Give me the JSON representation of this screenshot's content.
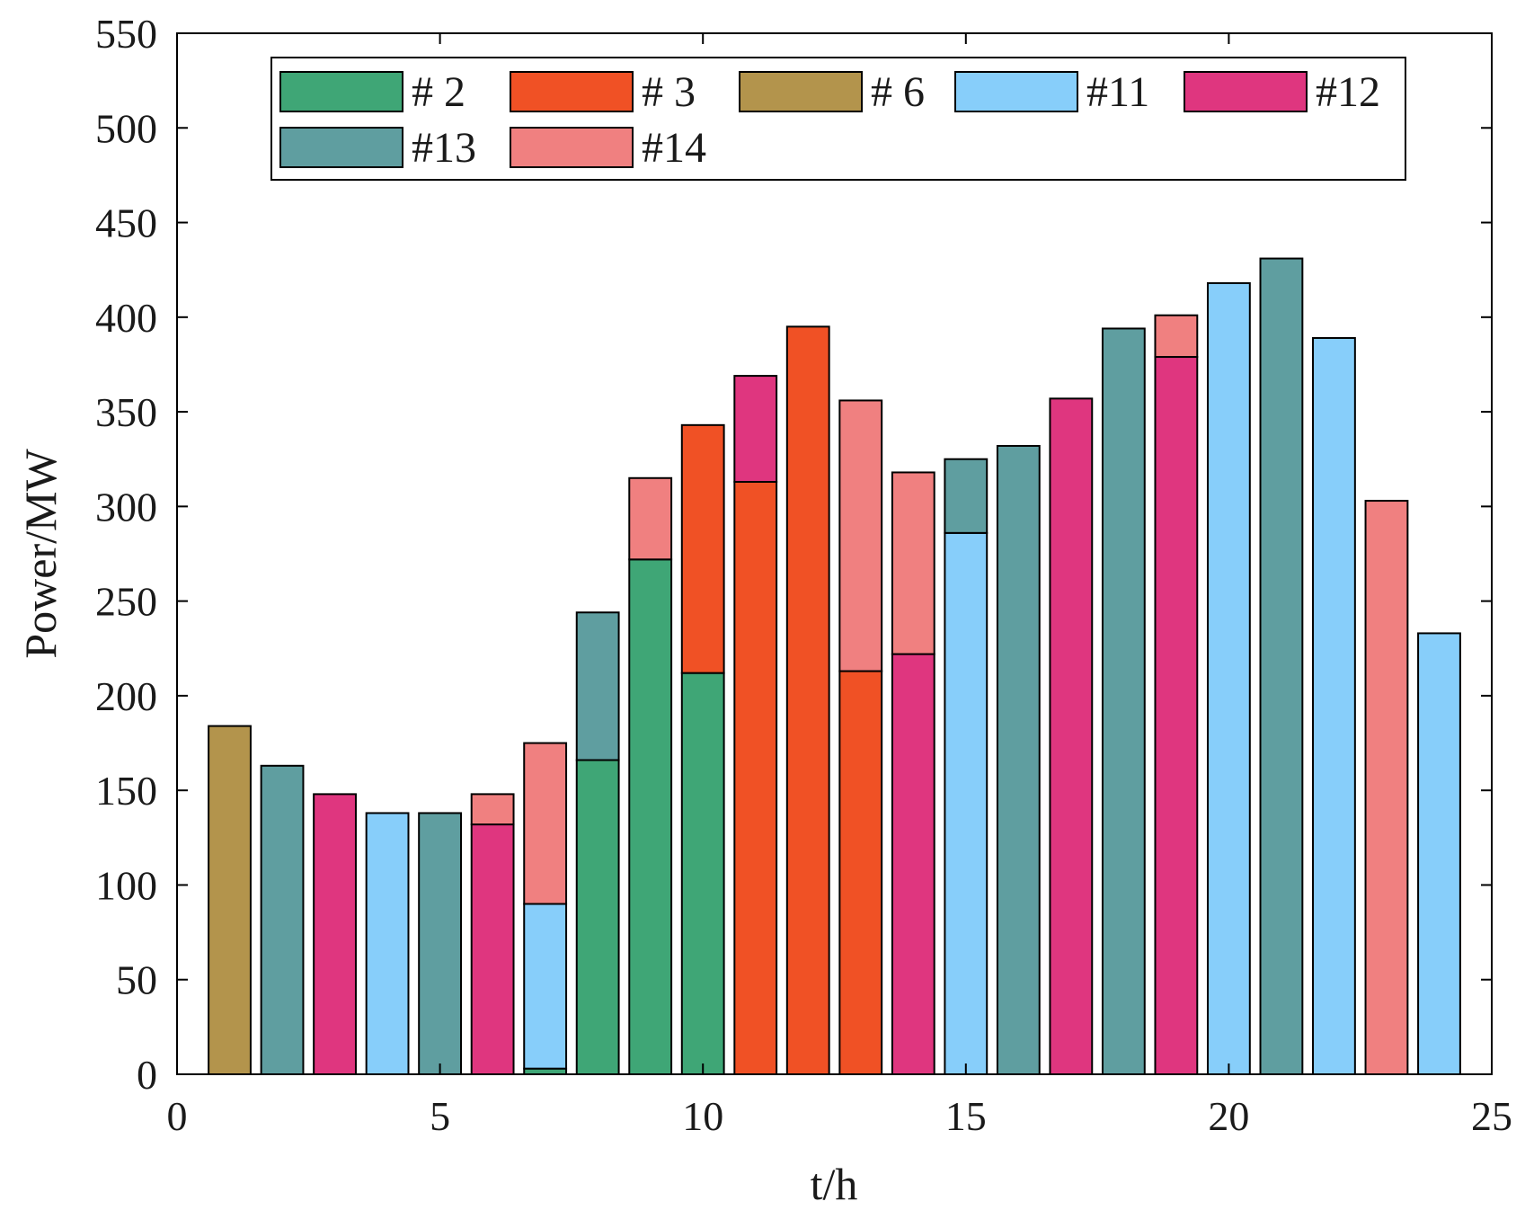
{
  "chart_data": {
    "type": "bar",
    "stacked": true,
    "xlabel": "t/h",
    "ylabel": "Power/MW",
    "xlim": [
      0,
      25
    ],
    "ylim": [
      0,
      550
    ],
    "xticks": [
      0,
      5,
      10,
      15,
      20,
      25
    ],
    "yticks": [
      0,
      50,
      100,
      150,
      200,
      250,
      300,
      350,
      400,
      450,
      500,
      550
    ],
    "legend_position": "top",
    "bar_width": 0.8,
    "series": [
      {
        "id": "s2",
        "name": "# 2",
        "color": "#3fa676"
      },
      {
        "id": "s3",
        "name": "# 3",
        "color": "#f05125"
      },
      {
        "id": "s6",
        "name": "# 6",
        "color": "#b3944c"
      },
      {
        "id": "s11",
        "name": "#11",
        "color": "#87cefa"
      },
      {
        "id": "s12",
        "name": "#12",
        "color": "#df367f"
      },
      {
        "id": "s13",
        "name": "#13",
        "color": "#5f9ea0"
      },
      {
        "id": "s14",
        "name": "#14",
        "color": "#f08080"
      }
    ],
    "hours": [
      {
        "t": 1,
        "segments": [
          {
            "series": "s6",
            "value": 184
          }
        ]
      },
      {
        "t": 2,
        "segments": [
          {
            "series": "s13",
            "value": 163
          }
        ]
      },
      {
        "t": 3,
        "segments": [
          {
            "series": "s12",
            "value": 148
          }
        ]
      },
      {
        "t": 4,
        "segments": [
          {
            "series": "s11",
            "value": 138
          }
        ]
      },
      {
        "t": 5,
        "segments": [
          {
            "series": "s13",
            "value": 138
          }
        ]
      },
      {
        "t": 6,
        "segments": [
          {
            "series": "s12",
            "value": 132
          },
          {
            "series": "s14",
            "value": 16
          }
        ]
      },
      {
        "t": 7,
        "segments": [
          {
            "series": "s2",
            "value": 3
          },
          {
            "series": "s11",
            "value": 87
          },
          {
            "series": "s14",
            "value": 85
          }
        ]
      },
      {
        "t": 8,
        "segments": [
          {
            "series": "s2",
            "value": 166
          },
          {
            "series": "s13",
            "value": 78
          }
        ]
      },
      {
        "t": 9,
        "segments": [
          {
            "series": "s2",
            "value": 272
          },
          {
            "series": "s14",
            "value": 43
          }
        ]
      },
      {
        "t": 10,
        "segments": [
          {
            "series": "s2",
            "value": 212
          },
          {
            "series": "s3",
            "value": 131
          }
        ]
      },
      {
        "t": 11,
        "segments": [
          {
            "series": "s3",
            "value": 313
          },
          {
            "series": "s12",
            "value": 56
          }
        ]
      },
      {
        "t": 12,
        "segments": [
          {
            "series": "s3",
            "value": 395
          }
        ]
      },
      {
        "t": 13,
        "segments": [
          {
            "series": "s3",
            "value": 213
          },
          {
            "series": "s14",
            "value": 143
          }
        ]
      },
      {
        "t": 14,
        "segments": [
          {
            "series": "s12",
            "value": 222
          },
          {
            "series": "s14",
            "value": 96
          }
        ]
      },
      {
        "t": 15,
        "segments": [
          {
            "series": "s11",
            "value": 286
          },
          {
            "series": "s13",
            "value": 39
          }
        ]
      },
      {
        "t": 16,
        "segments": [
          {
            "series": "s13",
            "value": 332
          }
        ]
      },
      {
        "t": 17,
        "segments": [
          {
            "series": "s12",
            "value": 357
          }
        ]
      },
      {
        "t": 18,
        "segments": [
          {
            "series": "s13",
            "value": 394
          }
        ]
      },
      {
        "t": 19,
        "segments": [
          {
            "series": "s12",
            "value": 379
          },
          {
            "series": "s14",
            "value": 22
          }
        ]
      },
      {
        "t": 20,
        "segments": [
          {
            "series": "s11",
            "value": 418
          }
        ]
      },
      {
        "t": 21,
        "segments": [
          {
            "series": "s13",
            "value": 431
          }
        ]
      },
      {
        "t": 22,
        "segments": [
          {
            "series": "s11",
            "value": 389
          }
        ]
      },
      {
        "t": 23,
        "segments": [
          {
            "series": "s14",
            "value": 303
          }
        ]
      },
      {
        "t": 24,
        "segments": [
          {
            "series": "s11",
            "value": 233
          }
        ]
      }
    ]
  }
}
